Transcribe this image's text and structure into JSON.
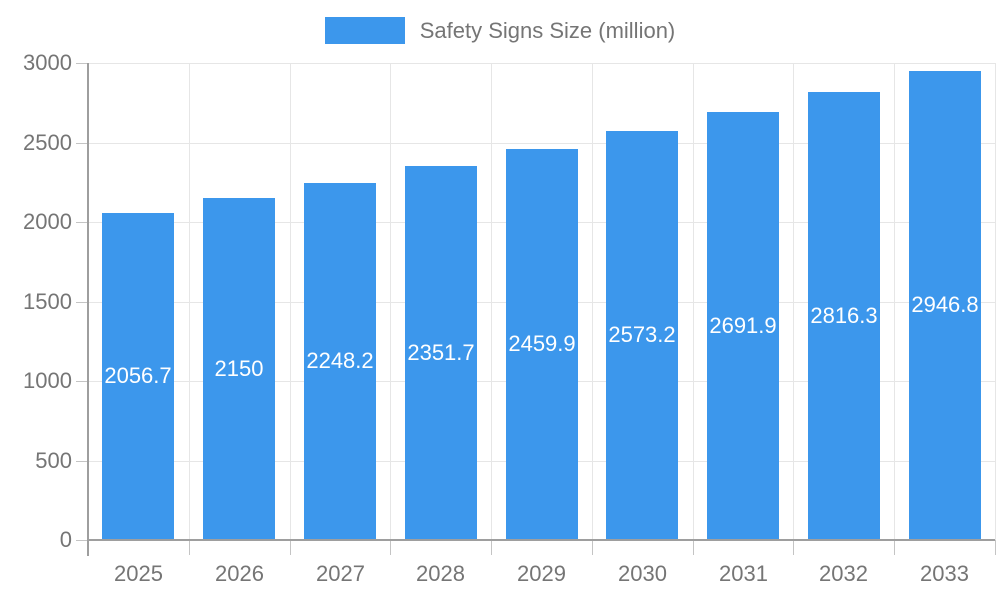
{
  "legend": {
    "label": "Safety Signs Size (million)",
    "swatch_color": "#3C97EC"
  },
  "chart_data": {
    "type": "bar",
    "title": "Safety Signs Size (million)",
    "xlabel": "",
    "ylabel": "",
    "categories": [
      "2025",
      "2026",
      "2027",
      "2028",
      "2029",
      "2030",
      "2031",
      "2032",
      "2033"
    ],
    "values": [
      2056.7,
      2150,
      2248.2,
      2351.7,
      2459.9,
      2573.2,
      2691.9,
      2816.3,
      2946.8
    ],
    "value_labels": [
      "2056.7",
      "2150",
      "2248.2",
      "2351.7",
      "2459.9",
      "2573.2",
      "2691.9",
      "2816.3",
      "2946.8"
    ],
    "ylim": [
      0,
      3000
    ],
    "yticks": [
      0,
      500,
      1000,
      1500,
      2000,
      2500,
      3000
    ],
    "ytick_labels": [
      "0",
      "500",
      "1000",
      "1500",
      "2000",
      "2500",
      "3000"
    ],
    "grid": true,
    "legend_position": "top center",
    "bar_color": "#3C97EC",
    "value_label_color": "#ffffff",
    "axis_text_color": "#757575",
    "gridline_color": "#e6e6e6",
    "axis_line_color": "#9e9e9e"
  }
}
